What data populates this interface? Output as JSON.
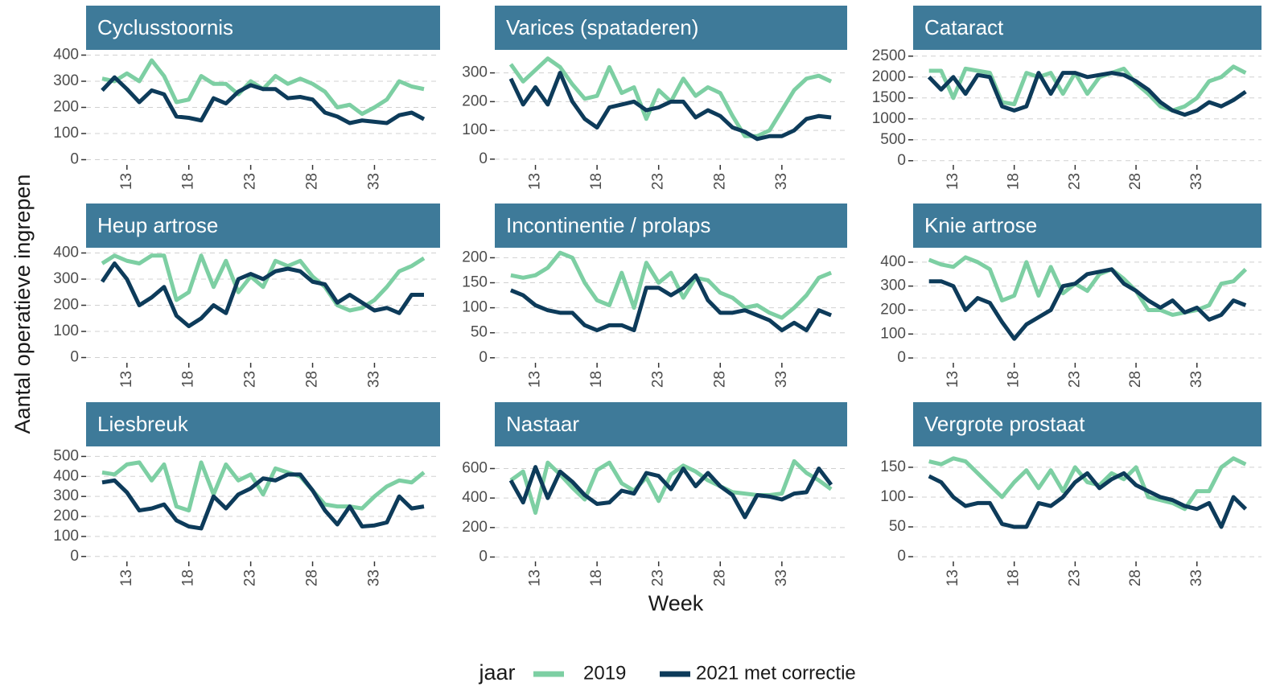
{
  "y_label": "Aantal operatieve ingrepen",
  "x_label": "Week",
  "legend_title": "jaar",
  "chart_data": [
    {
      "type": "line",
      "title": "Cyclusstoornis",
      "x": [
        11,
        12,
        13,
        14,
        15,
        16,
        17,
        18,
        19,
        20,
        21,
        22,
        23,
        24,
        25,
        26,
        27,
        28,
        29,
        30,
        31,
        32,
        33,
        34,
        35,
        36,
        37
      ],
      "xlim": [
        9.7,
        38.3
      ],
      "xticks": [
        13,
        18,
        23,
        28,
        33
      ],
      "ylim": [
        -20,
        420
      ],
      "yticks": [
        0,
        100,
        200,
        300,
        400
      ],
      "grid": true,
      "series": [
        {
          "name": "2019",
          "color": "#7dcfa3",
          "values": [
            310,
            300,
            330,
            300,
            380,
            320,
            220,
            230,
            320,
            290,
            290,
            250,
            300,
            270,
            320,
            290,
            310,
            290,
            260,
            200,
            210,
            175,
            200,
            230,
            300,
            280,
            270
          ]
        },
        {
          "name": "2021 met correctie",
          "color": "#0d3b5a",
          "values": [
            265,
            315,
            270,
            220,
            265,
            250,
            165,
            160,
            150,
            235,
            215,
            260,
            285,
            270,
            270,
            235,
            240,
            230,
            180,
            165,
            140,
            150,
            145,
            140,
            170,
            180,
            155
          ]
        }
      ]
    },
    {
      "type": "line",
      "title": "Varices (spataderen)",
      "x": [
        11,
        12,
        13,
        14,
        15,
        16,
        17,
        18,
        19,
        20,
        21,
        22,
        23,
        24,
        25,
        26,
        27,
        28,
        29,
        30,
        31,
        32,
        33,
        34,
        35,
        36,
        37
      ],
      "xlim": [
        9.7,
        38.3
      ],
      "xticks": [
        13,
        18,
        23,
        28,
        33
      ],
      "ylim": [
        -20,
        380
      ],
      "yticks": [
        0,
        100,
        200,
        300
      ],
      "grid": true,
      "series": [
        {
          "name": "2019",
          "color": "#7dcfa3",
          "values": [
            330,
            270,
            310,
            350,
            320,
            260,
            210,
            220,
            320,
            230,
            250,
            140,
            240,
            200,
            280,
            220,
            250,
            230,
            150,
            80,
            80,
            100,
            170,
            240,
            280,
            290,
            270
          ]
        },
        {
          "name": "2021 met correctie",
          "color": "#0d3b5a",
          "values": [
            280,
            190,
            250,
            190,
            300,
            200,
            140,
            110,
            180,
            190,
            200,
            170,
            180,
            200,
            200,
            145,
            170,
            150,
            110,
            95,
            70,
            80,
            80,
            100,
            140,
            150,
            145
          ]
        }
      ]
    },
    {
      "type": "line",
      "title": "Cataract",
      "x": [
        11,
        12,
        13,
        14,
        15,
        16,
        17,
        18,
        19,
        20,
        21,
        22,
        23,
        24,
        25,
        26,
        27,
        28,
        29,
        30,
        31,
        32,
        33,
        34,
        35,
        36,
        37
      ],
      "xlim": [
        9.7,
        38.3
      ],
      "xticks": [
        13,
        18,
        23,
        28,
        33
      ],
      "ylim": [
        -100,
        2650
      ],
      "yticks": [
        0,
        500,
        1000,
        1500,
        2000,
        2500
      ],
      "grid": true,
      "series": [
        {
          "name": "2019",
          "color": "#7dcfa3",
          "values": [
            2150,
            2150,
            1500,
            2200,
            2150,
            2100,
            1400,
            1350,
            2100,
            2000,
            2100,
            1600,
            2100,
            1600,
            2000,
            2100,
            2200,
            1850,
            1600,
            1300,
            1200,
            1300,
            1500,
            1900,
            2000,
            2250,
            2100
          ]
        },
        {
          "name": "2021 met correctie",
          "color": "#0d3b5a",
          "values": [
            2000,
            1700,
            2000,
            1600,
            2050,
            2000,
            1300,
            1200,
            1300,
            2100,
            1600,
            2100,
            2100,
            2000,
            2050,
            2100,
            2050,
            1900,
            1700,
            1400,
            1200,
            1100,
            1200,
            1400,
            1300,
            1450,
            1650
          ]
        }
      ]
    },
    {
      "type": "line",
      "title": "Heup artrose",
      "x": [
        11,
        12,
        13,
        14,
        15,
        16,
        17,
        18,
        19,
        20,
        21,
        22,
        23,
        24,
        25,
        26,
        27,
        28,
        29,
        30,
        31,
        32,
        33,
        34,
        35,
        36,
        37
      ],
      "xlim": [
        9.7,
        38.3
      ],
      "xticks": [
        13,
        18,
        23,
        28,
        33
      ],
      "ylim": [
        -20,
        420
      ],
      "yticks": [
        0,
        100,
        200,
        300,
        400
      ],
      "grid": true,
      "series": [
        {
          "name": "2019",
          "color": "#7dcfa3",
          "values": [
            360,
            390,
            370,
            360,
            390,
            390,
            220,
            250,
            390,
            270,
            370,
            250,
            310,
            270,
            370,
            350,
            370,
            310,
            270,
            200,
            180,
            190,
            220,
            270,
            330,
            350,
            380
          ]
        },
        {
          "name": "2021 met correctie",
          "color": "#0d3b5a",
          "values": [
            290,
            360,
            300,
            200,
            230,
            270,
            160,
            120,
            150,
            200,
            170,
            300,
            320,
            300,
            330,
            340,
            330,
            290,
            280,
            210,
            240,
            210,
            180,
            190,
            170,
            240,
            240
          ]
        }
      ]
    },
    {
      "type": "line",
      "title": "Incontinentie / prolaps",
      "x": [
        11,
        12,
        13,
        14,
        15,
        16,
        17,
        18,
        19,
        20,
        21,
        22,
        23,
        24,
        25,
        26,
        27,
        28,
        29,
        30,
        31,
        32,
        33,
        34,
        35,
        36,
        37
      ],
      "xlim": [
        9.7,
        38.3
      ],
      "xticks": [
        13,
        18,
        23,
        28,
        33
      ],
      "ylim": [
        -10,
        220
      ],
      "yticks": [
        0,
        50,
        100,
        150,
        200
      ],
      "grid": true,
      "series": [
        {
          "name": "2019",
          "color": "#7dcfa3",
          "values": [
            165,
            160,
            165,
            180,
            210,
            200,
            150,
            115,
            105,
            170,
            100,
            190,
            150,
            170,
            120,
            160,
            155,
            130,
            120,
            100,
            105,
            90,
            80,
            100,
            125,
            160,
            170
          ]
        },
        {
          "name": "2021 met correctie",
          "color": "#0d3b5a",
          "values": [
            135,
            125,
            105,
            95,
            90,
            90,
            65,
            55,
            65,
            65,
            55,
            140,
            140,
            125,
            140,
            165,
            115,
            90,
            90,
            95,
            85,
            75,
            55,
            70,
            55,
            95,
            85
          ]
        }
      ]
    },
    {
      "type": "line",
      "title": "Knie artrose",
      "x": [
        11,
        12,
        13,
        14,
        15,
        16,
        17,
        18,
        19,
        20,
        21,
        22,
        23,
        24,
        25,
        26,
        27,
        28,
        29,
        30,
        31,
        32,
        33,
        34,
        35,
        36,
        37
      ],
      "xlim": [
        9.7,
        38.3
      ],
      "xticks": [
        13,
        18,
        23,
        28,
        33
      ],
      "ylim": [
        -20,
        460
      ],
      "yticks": [
        0,
        100,
        200,
        300,
        400
      ],
      "grid": true,
      "series": [
        {
          "name": "2019",
          "color": "#7dcfa3",
          "values": [
            410,
            390,
            380,
            420,
            400,
            370,
            240,
            260,
            400,
            260,
            380,
            270,
            310,
            280,
            350,
            370,
            330,
            280,
            200,
            200,
            180,
            190,
            200,
            220,
            310,
            320,
            370
          ]
        },
        {
          "name": "2021 met correctie",
          "color": "#0d3b5a",
          "values": [
            320,
            320,
            300,
            200,
            250,
            230,
            150,
            80,
            140,
            170,
            200,
            300,
            310,
            350,
            360,
            370,
            310,
            280,
            240,
            210,
            240,
            190,
            210,
            160,
            180,
            240,
            220
          ]
        }
      ]
    },
    {
      "type": "line",
      "title": "Liesbreuk",
      "x": [
        11,
        12,
        13,
        14,
        15,
        16,
        17,
        18,
        19,
        20,
        21,
        22,
        23,
        24,
        25,
        26,
        27,
        28,
        29,
        30,
        31,
        32,
        33,
        34,
        35,
        36,
        37
      ],
      "xlim": [
        9.7,
        38.3
      ],
      "xticks": [
        13,
        18,
        23,
        28,
        33
      ],
      "ylim": [
        -25,
        550
      ],
      "yticks": [
        0,
        100,
        200,
        300,
        400,
        500
      ],
      "grid": true,
      "series": [
        {
          "name": "2019",
          "color": "#7dcfa3",
          "values": [
            420,
            410,
            460,
            470,
            380,
            460,
            250,
            230,
            470,
            310,
            460,
            380,
            410,
            310,
            440,
            420,
            400,
            330,
            260,
            250,
            250,
            240,
            300,
            350,
            380,
            370,
            420
          ]
        },
        {
          "name": "2021 met correctie",
          "color": "#0d3b5a",
          "values": [
            370,
            380,
            320,
            230,
            240,
            260,
            180,
            150,
            140,
            300,
            240,
            310,
            340,
            390,
            380,
            410,
            410,
            330,
            230,
            160,
            250,
            150,
            155,
            170,
            300,
            240,
            250
          ]
        }
      ]
    },
    {
      "type": "line",
      "title": "Nastaar",
      "x": [
        11,
        12,
        13,
        14,
        15,
        16,
        17,
        18,
        19,
        20,
        21,
        22,
        23,
        24,
        25,
        26,
        27,
        28,
        29,
        30,
        31,
        32,
        33,
        34,
        35,
        36,
        37
      ],
      "xlim": [
        9.7,
        38.3
      ],
      "xticks": [
        13,
        18,
        23,
        28,
        33
      ],
      "ylim": [
        -30,
        750
      ],
      "yticks": [
        0,
        200,
        400,
        600
      ],
      "grid": true,
      "series": [
        {
          "name": "2019",
          "color": "#7dcfa3",
          "values": [
            520,
            580,
            300,
            640,
            560,
            470,
            390,
            590,
            640,
            500,
            450,
            540,
            380,
            560,
            620,
            580,
            520,
            480,
            440,
            430,
            420,
            420,
            430,
            650,
            570,
            520,
            460
          ]
        },
        {
          "name": "2021 met correctie",
          "color": "#0d3b5a",
          "values": [
            520,
            370,
            610,
            400,
            580,
            510,
            420,
            360,
            370,
            450,
            430,
            570,
            550,
            460,
            600,
            480,
            570,
            480,
            420,
            270,
            420,
            410,
            390,
            430,
            440,
            600,
            490
          ]
        }
      ]
    },
    {
      "type": "line",
      "title": "Vergrote prostaat",
      "x": [
        11,
        12,
        13,
        14,
        15,
        16,
        17,
        18,
        19,
        20,
        21,
        22,
        23,
        24,
        25,
        26,
        27,
        28,
        29,
        30,
        31,
        32,
        33,
        34,
        35,
        36,
        37
      ],
      "xlim": [
        9.7,
        38.3
      ],
      "xticks": [
        13,
        18,
        23,
        28,
        33
      ],
      "ylim": [
        -8,
        185
      ],
      "yticks": [
        0,
        50,
        100,
        150
      ],
      "grid": true,
      "series": [
        {
          "name": "2019",
          "color": "#7dcfa3",
          "values": [
            160,
            155,
            165,
            160,
            140,
            120,
            100,
            125,
            145,
            115,
            145,
            110,
            150,
            125,
            120,
            140,
            130,
            150,
            100,
            95,
            90,
            80,
            110,
            110,
            150,
            165,
            155
          ]
        },
        {
          "name": "2021 met correctie",
          "color": "#0d3b5a",
          "values": [
            135,
            125,
            100,
            85,
            90,
            90,
            55,
            50,
            50,
            90,
            85,
            100,
            125,
            140,
            115,
            130,
            140,
            120,
            110,
            100,
            95,
            85,
            80,
            90,
            50,
            100,
            80
          ]
        }
      ]
    }
  ]
}
